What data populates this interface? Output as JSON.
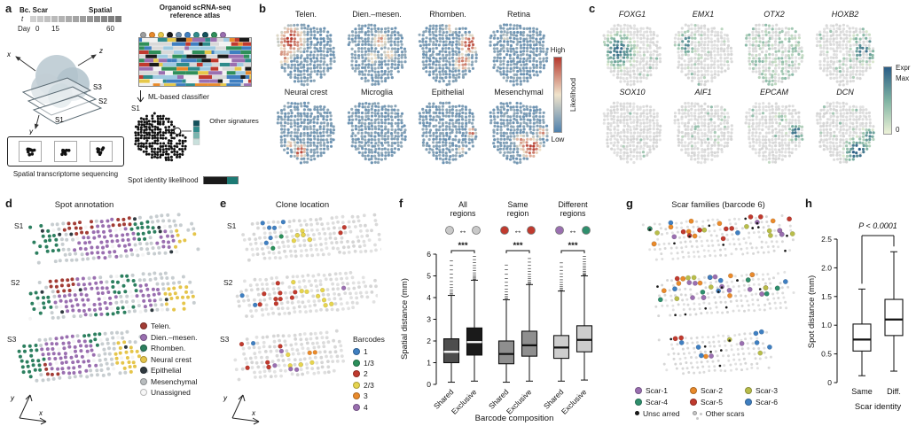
{
  "panel_a": {
    "letter": "a",
    "bc_scar": "Bc. Scar",
    "spatial": "Spatial",
    "t_label": "t",
    "day_label": "Day",
    "day_ticks": [
      "0",
      "15",
      "60"
    ],
    "axis_x": "x",
    "axis_y": "y",
    "axis_z": "z",
    "sections": [
      "S3",
      "S2",
      "S1"
    ],
    "seq_label": "Spatial transcriptome sequencing",
    "atlas_title_1": "Organoid scRNA-seq",
    "atlas_title_2": "reference atlas",
    "classifier_label": "ML-based classifier",
    "s1_label": "S1",
    "other_label": "Other signatures",
    "likelihood_label": "Spot identity likelihood",
    "atlas_dot_colors": [
      "#9e9e9e",
      "#e98a2b",
      "#e6c84a",
      "#1a1a1a",
      "#6f8fae",
      "#3f7fc1",
      "#2e8b8b",
      "#14525c",
      "#2f8f5a",
      "#9a6fb0"
    ],
    "likelihood_bar_colors": [
      "#1a1a1a",
      "#1d7a74"
    ]
  },
  "panel_b": {
    "letter": "b",
    "maps": [
      "Telen.",
      "Dien.–mesen.",
      "Rhomben.",
      "Retina",
      "Neural crest",
      "Microglia",
      "Epithelial",
      "Mesenchymal"
    ],
    "colorbar": {
      "label": "Likelihood",
      "high": "High",
      "low": "Low",
      "high_color": "#b5392e",
      "mid_color": "#f0e3cb",
      "low_color": "#4f81ad"
    }
  },
  "panel_c": {
    "letter": "c",
    "genes": [
      "FOXG1",
      "EMX1",
      "OTX2",
      "HOXB2",
      "SOX10",
      "AIF1",
      "EPCAM",
      "DCN"
    ],
    "colorbar": {
      "label": "Expr",
      "max": "Max",
      "min": "0",
      "max_color": "#2a5d86",
      "mid_color": "#7fb3a2",
      "min_color": "#edf2d8"
    }
  },
  "panel_d": {
    "letter": "d",
    "title": "Spot annotation",
    "sections": [
      "S1",
      "S2",
      "S3"
    ],
    "axis_x": "x",
    "axis_y": "y",
    "legend": [
      {
        "label": "Telen.",
        "color": "#a23c35"
      },
      {
        "label": "Dien.–mesen.",
        "color": "#9a6fb0"
      },
      {
        "label": "Rhomben.",
        "color": "#2c7f5f"
      },
      {
        "label": "Neural crest",
        "color": "#e5c54a"
      },
      {
        "label": "Epithelial",
        "color": "#2f3a40"
      },
      {
        "label": "Mesenchymal",
        "color": "#b9bdbf"
      },
      {
        "label": "Unassigned",
        "color": "#f7f7f7"
      }
    ]
  },
  "panel_e": {
    "letter": "e",
    "title": "Clone location",
    "sections": [
      "S1",
      "S2",
      "S3"
    ],
    "axis_x": "x",
    "axis_y": "y",
    "legend_title": "Barcodes",
    "legend": [
      {
        "label": "1",
        "color": "#3f7fc1"
      },
      {
        "label": "1/3",
        "color": "#2a8f5a"
      },
      {
        "label": "2",
        "color": "#c03a2e"
      },
      {
        "label": "2/3",
        "color": "#e6d44e"
      },
      {
        "label": "3",
        "color": "#e98a2b"
      },
      {
        "label": "4",
        "color": "#9a6fb0"
      }
    ]
  },
  "panel_f": {
    "letter": "f"
  },
  "panel_g": {
    "letter": "g",
    "title": "Scar families (barcode 6)",
    "legend": [
      {
        "label": "Scar-1",
        "color": "#9a6fb0"
      },
      {
        "label": "Scar-2",
        "color": "#e98a2b"
      },
      {
        "label": "Scar-3",
        "color": "#b8bd4a"
      },
      {
        "label": "Scar-4",
        "color": "#2f8f6d"
      },
      {
        "label": "Scar-5",
        "color": "#c03a2e"
      },
      {
        "label": "Scar-6",
        "color": "#3f7fc1"
      }
    ],
    "legend_extra": [
      {
        "label": "Unsc arred",
        "color": "#1a1a1a"
      },
      {
        "label": "Other scars",
        "color": "#c8c8c8"
      }
    ]
  },
  "panel_h": {
    "letter": "h"
  },
  "chart_data": [
    {
      "id": "f",
      "type": "boxplot",
      "ylabel": "Spatial distance (mm)",
      "xlabel": "Barcode composition",
      "ylim": [
        0,
        6
      ],
      "yticks": [
        0,
        1,
        2,
        3,
        4,
        5,
        6
      ],
      "ytick_labels": [
        "0",
        "1",
        "2",
        "3",
        "4",
        "5",
        "6"
      ],
      "significance": "***",
      "groups": [
        {
          "name": "All regions",
          "icon_colors": [
            "#c9c9c9",
            "#c9c9c9"
          ],
          "boxes": [
            {
              "label": "Shared",
              "whisker_low": 0.1,
              "q1": 1.0,
              "median": 1.5,
              "q3": 2.1,
              "whisker_high": 4.1,
              "outlier_max": 5.7,
              "fill": "#4d4d4d"
            },
            {
              "label": "Exclusive",
              "whisker_low": 0.15,
              "q1": 1.35,
              "median": 1.95,
              "q3": 2.6,
              "whisker_high": 4.8,
              "outlier_max": 5.9,
              "fill": "#1a1a1a"
            }
          ]
        },
        {
          "name": "Same region",
          "icon_colors": [
            "#c03a2e",
            "#c03a2e"
          ],
          "boxes": [
            {
              "label": "Shared",
              "whisker_low": 0.1,
              "q1": 0.95,
              "median": 1.4,
              "q3": 2.0,
              "whisker_high": 3.9,
              "outlier_max": 5.5,
              "fill": "#8f8f8f"
            },
            {
              "label": "Exclusive",
              "whisker_low": 0.15,
              "q1": 1.3,
              "median": 1.8,
              "q3": 2.45,
              "whisker_high": 4.6,
              "outlier_max": 5.8,
              "fill": "#8f8f8f"
            }
          ]
        },
        {
          "name": "Different regions",
          "icon_colors": [
            "#9a6fb0",
            "#2f8f6d"
          ],
          "boxes": [
            {
              "label": "Shared",
              "whisker_low": 0.15,
              "q1": 1.2,
              "median": 1.7,
              "q3": 2.25,
              "whisker_high": 4.3,
              "outlier_max": 5.6,
              "fill": "#cdcdcd"
            },
            {
              "label": "Exclusive",
              "whisker_low": 0.2,
              "q1": 1.5,
              "median": 2.05,
              "q3": 2.7,
              "whisker_high": 5.0,
              "outlier_max": 5.9,
              "fill": "#cdcdcd"
            }
          ]
        }
      ]
    },
    {
      "id": "h",
      "type": "boxplot",
      "ylabel": "Spot distance (mm)",
      "xlabel": "Scar identity",
      "ylim": [
        0,
        2.5
      ],
      "yticks": [
        0,
        0.5,
        1,
        1.5,
        2,
        2.5
      ],
      "ytick_labels": [
        "0",
        "0.5",
        "1.0",
        "1.5",
        "2.0",
        "2.5"
      ],
      "significance": "P < 0.0001",
      "boxes": [
        {
          "label": "Same",
          "whisker_low": 0.12,
          "q1": 0.55,
          "median": 0.75,
          "q3": 1.02,
          "whisker_high": 1.63,
          "fill": "#ffffff"
        },
        {
          "label": "Diff.",
          "whisker_low": 0.2,
          "q1": 0.82,
          "median": 1.1,
          "q3": 1.45,
          "whisker_high": 2.28,
          "fill": "#ffffff"
        }
      ]
    }
  ]
}
